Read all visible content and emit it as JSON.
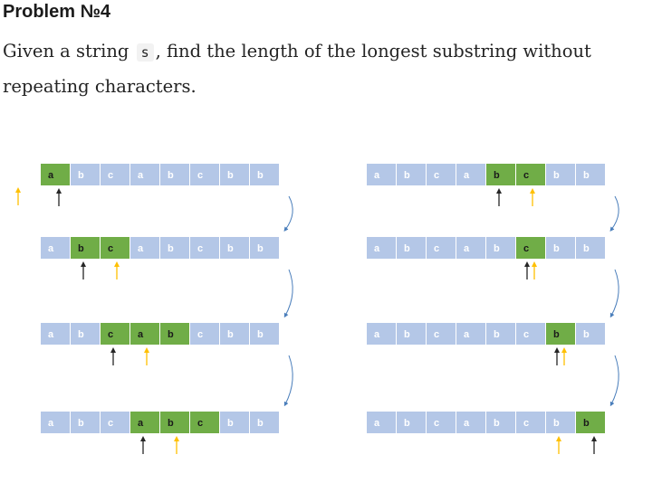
{
  "header": {
    "title": "Problem №4",
    "text_before": "Given a string ",
    "variable": "s",
    "text_after": ", find the length of the longest substring without repeating characters."
  },
  "diagram": {
    "colors": {
      "window": "#70ad47",
      "cell": "#b4c7e7",
      "left_pointer": "#262626",
      "right_pointer": "#ffc000",
      "transition_arrow": "#4a7ebb"
    },
    "string": [
      "a",
      "b",
      "c",
      "a",
      "b",
      "c",
      "b",
      "b"
    ],
    "columns": [
      {
        "steps": [
          {
            "window": [
              0,
              0
            ],
            "left_pointer": 0,
            "right_pointer": -1
          },
          {
            "window": [
              1,
              2
            ],
            "left_pointer": 1,
            "right_pointer": 2
          },
          {
            "window": [
              2,
              4
            ],
            "left_pointer": 2,
            "right_pointer": 3
          },
          {
            "window": [
              3,
              5
            ],
            "left_pointer": 3,
            "right_pointer": 4
          }
        ]
      },
      {
        "steps": [
          {
            "window": [
              4,
              5
            ],
            "left_pointer": 4,
            "right_pointer": 5
          },
          {
            "window": [
              5,
              5
            ],
            "left_pointer": 5,
            "right_pointer": 5
          },
          {
            "window": [
              6,
              6
            ],
            "left_pointer": 6,
            "right_pointer": 6
          },
          {
            "window": [
              7,
              7
            ],
            "left_pointer": 7,
            "right_pointer": 6
          }
        ]
      }
    ]
  }
}
